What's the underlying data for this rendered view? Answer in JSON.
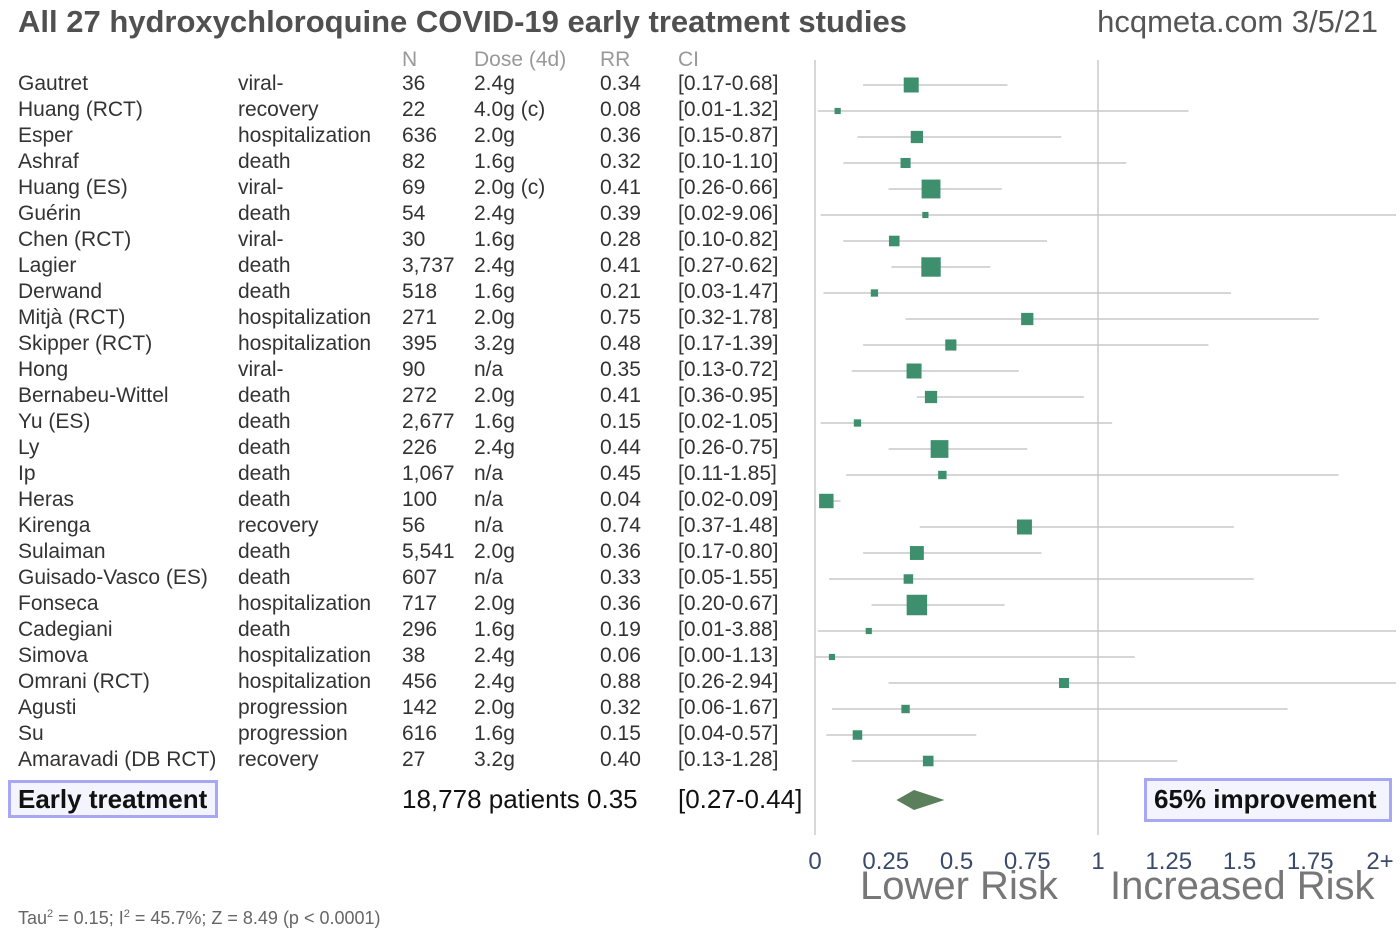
{
  "title": "All 27 hydroxychloroquine COVID-19 early treatment studies",
  "source": "hcqmeta.com 3/5/21",
  "columns": {
    "n": "N",
    "dose": "Dose (4d)",
    "rr": "RR",
    "ci": "CI"
  },
  "summary": {
    "label": "Early treatment",
    "patients_rr": "18,778 patients 0.35",
    "ci": "[0.27-0.44]",
    "improvement": "65% improvement"
  },
  "stats": {
    "tau": "Tau",
    "sup2": "2",
    "i": "; I",
    "rest": " = 45.7%; Z = 8.49 (p < 0.0001)",
    "tau_val": " = 0.15"
  },
  "axis_labels": {
    "lower": "Lower Risk",
    "higher": "Increased Risk"
  },
  "colors": {
    "marker": "#3e8f6e",
    "diamond": "#5a7f5a",
    "ci_line": "#c8c8c8",
    "axis": "#cccccc",
    "box_border": "#a7a7f3"
  },
  "chart_data": {
    "type": "forest",
    "xlim": [
      0,
      2
    ],
    "xticks": [
      "0",
      "0.25",
      "0.5",
      "0.75",
      "1",
      "1.25",
      "1.5",
      "1.75",
      "2+"
    ],
    "null_line": 1,
    "studies": [
      {
        "name": "Gautret",
        "outcome": "viral-",
        "n": "36",
        "dose": "2.4g",
        "rr": "0.34",
        "ci": "[0.17-0.68]",
        "rr_v": 0.34,
        "lo": 0.17,
        "hi": 0.68,
        "w": 1.0
      },
      {
        "name": "Huang (RCT)",
        "outcome": "recovery",
        "n": "22",
        "dose": "4.0g (c)",
        "rr": "0.08",
        "ci": "[0.01-1.32]",
        "rr_v": 0.08,
        "lo": 0.01,
        "hi": 1.32,
        "w": 0.2
      },
      {
        "name": "Esper",
        "outcome": "hospitalization",
        "n": "636",
        "dose": "2.0g",
        "rr": "0.36",
        "ci": "[0.15-0.87]",
        "rr_v": 0.36,
        "lo": 0.15,
        "hi": 0.87,
        "w": 0.75
      },
      {
        "name": "Ashraf",
        "outcome": "death",
        "n": "82",
        "dose": "1.6g",
        "rr": "0.32",
        "ci": "[0.10-1.10]",
        "rr_v": 0.32,
        "lo": 0.1,
        "hi": 1.1,
        "w": 0.55
      },
      {
        "name": "Huang (ES)",
        "outcome": "viral-",
        "n": "69",
        "dose": "2.0g (c)",
        "rr": "0.41",
        "ci": "[0.26-0.66]",
        "rr_v": 0.41,
        "lo": 0.26,
        "hi": 0.66,
        "w": 1.35
      },
      {
        "name": "Guérin",
        "outcome": "death",
        "n": "54",
        "dose": "2.4g",
        "rr": "0.39",
        "ci": "[0.02-9.06]",
        "rr_v": 0.39,
        "lo": 0.02,
        "hi": 9.06,
        "w": 0.2
      },
      {
        "name": "Chen (RCT)",
        "outcome": "viral-",
        "n": "30",
        "dose": "1.6g",
        "rr": "0.28",
        "ci": "[0.10-0.82]",
        "rr_v": 0.28,
        "lo": 0.1,
        "hi": 0.82,
        "w": 0.6
      },
      {
        "name": "Lagier",
        "outcome": "death",
        "n": "3,737",
        "dose": "2.4g",
        "rr": "0.41",
        "ci": "[0.27-0.62]",
        "rr_v": 0.41,
        "lo": 0.27,
        "hi": 0.62,
        "w": 1.4
      },
      {
        "name": "Derwand",
        "outcome": "death",
        "n": "518",
        "dose": "1.6g",
        "rr": "0.21",
        "ci": "[0.03-1.47]",
        "rr_v": 0.21,
        "lo": 0.03,
        "hi": 1.47,
        "w": 0.3
      },
      {
        "name": "Mitjà (RCT)",
        "outcome": "hospitalization",
        "n": "271",
        "dose": "2.0g",
        "rr": "0.75",
        "ci": "[0.32-1.78]",
        "rr_v": 0.75,
        "lo": 0.32,
        "hi": 1.78,
        "w": 0.75
      },
      {
        "name": "Skipper (RCT)",
        "outcome": "hospitalization",
        "n": "395",
        "dose": "3.2g",
        "rr": "0.48",
        "ci": "[0.17-1.39]",
        "rr_v": 0.48,
        "lo": 0.17,
        "hi": 1.39,
        "w": 0.65
      },
      {
        "name": "Hong",
        "outcome": "viral-",
        "n": "90",
        "dose": "n/a",
        "rr": "0.35",
        "ci": "[0.13-0.72]",
        "rr_v": 0.35,
        "lo": 0.13,
        "hi": 0.72,
        "w": 1.0
      },
      {
        "name": "Bernabeu-Wittel",
        "outcome": "death",
        "n": "272",
        "dose": "2.0g",
        "rr": "0.41",
        "ci": "[0.36-0.95]",
        "rr_v": 0.41,
        "lo": 0.36,
        "hi": 0.95,
        "w": 0.75
      },
      {
        "name": "Yu (ES)",
        "outcome": "death",
        "n": "2,677",
        "dose": "1.6g",
        "rr": "0.15",
        "ci": "[0.02-1.05]",
        "rr_v": 0.15,
        "lo": 0.02,
        "hi": 1.05,
        "w": 0.3
      },
      {
        "name": "Ly",
        "outcome": "death",
        "n": "226",
        "dose": "2.4g",
        "rr": "0.44",
        "ci": "[0.26-0.75]",
        "rr_v": 0.44,
        "lo": 0.26,
        "hi": 0.75,
        "w": 1.25
      },
      {
        "name": "Ip",
        "outcome": "death",
        "n": "1,067",
        "dose": "n/a",
        "rr": "0.45",
        "ci": "[0.11-1.85]",
        "rr_v": 0.45,
        "lo": 0.11,
        "hi": 1.85,
        "w": 0.4
      },
      {
        "name": "Heras",
        "outcome": "death",
        "n": "100",
        "dose": "n/a",
        "rr": "0.04",
        "ci": "[0.02-0.09]",
        "rr_v": 0.04,
        "lo": 0.02,
        "hi": 0.09,
        "w": 0.95
      },
      {
        "name": "Kirenga",
        "outcome": "recovery",
        "n": "56",
        "dose": "n/a",
        "rr": "0.74",
        "ci": "[0.37-1.48]",
        "rr_v": 0.74,
        "lo": 0.37,
        "hi": 1.48,
        "w": 1.0
      },
      {
        "name": "Sulaiman",
        "outcome": "death",
        "n": "5,541",
        "dose": "2.0g",
        "rr": "0.36",
        "ci": "[0.17-0.80]",
        "rr_v": 0.36,
        "lo": 0.17,
        "hi": 0.8,
        "w": 0.9
      },
      {
        "name": "Guisado-Vasco (ES)",
        "outcome": "death",
        "n": "607",
        "dose": "n/a",
        "rr": "0.33",
        "ci": "[0.05-1.55]",
        "rr_v": 0.33,
        "lo": 0.05,
        "hi": 1.55,
        "w": 0.5
      },
      {
        "name": "Fonseca",
        "outcome": "hospitalization",
        "n": "717",
        "dose": "2.0g",
        "rr": "0.36",
        "ci": "[0.20-0.67]",
        "rr_v": 0.36,
        "lo": 0.2,
        "hi": 0.67,
        "w": 1.5
      },
      {
        "name": "Cadegiani",
        "outcome": "death",
        "n": "296",
        "dose": "1.6g",
        "rr": "0.19",
        "ci": "[0.01-3.88]",
        "rr_v": 0.19,
        "lo": 0.01,
        "hi": 3.88,
        "w": 0.2
      },
      {
        "name": "Simova",
        "outcome": "hospitalization",
        "n": "38",
        "dose": "2.4g",
        "rr": "0.06",
        "ci": "[0.00-1.13]",
        "rr_v": 0.06,
        "lo": 0.0,
        "hi": 1.13,
        "w": 0.2
      },
      {
        "name": "Omrani (RCT)",
        "outcome": "hospitalization",
        "n": "456",
        "dose": "2.4g",
        "rr": "0.88",
        "ci": "[0.26-2.94]",
        "rr_v": 0.88,
        "lo": 0.26,
        "hi": 2.94,
        "w": 0.55
      },
      {
        "name": "Agusti",
        "outcome": "progression",
        "n": "142",
        "dose": "2.0g",
        "rr": "0.32",
        "ci": "[0.06-1.67]",
        "rr_v": 0.32,
        "lo": 0.06,
        "hi": 1.67,
        "w": 0.4
      },
      {
        "name": "Su",
        "outcome": "progression",
        "n": "616",
        "dose": "1.6g",
        "rr": "0.15",
        "ci": "[0.04-0.57]",
        "rr_v": 0.15,
        "lo": 0.04,
        "hi": 0.57,
        "w": 0.5
      },
      {
        "name": "Amaravadi (DB RCT)",
        "outcome": "recovery",
        "n": "27",
        "dose": "3.2g",
        "rr": "0.40",
        "ci": "[0.13-1.28]",
        "rr_v": 0.4,
        "lo": 0.13,
        "hi": 1.28,
        "w": 0.6
      }
    ],
    "pooled": {
      "rr_v": 0.35,
      "lo": 0.27,
      "hi": 0.44
    }
  }
}
